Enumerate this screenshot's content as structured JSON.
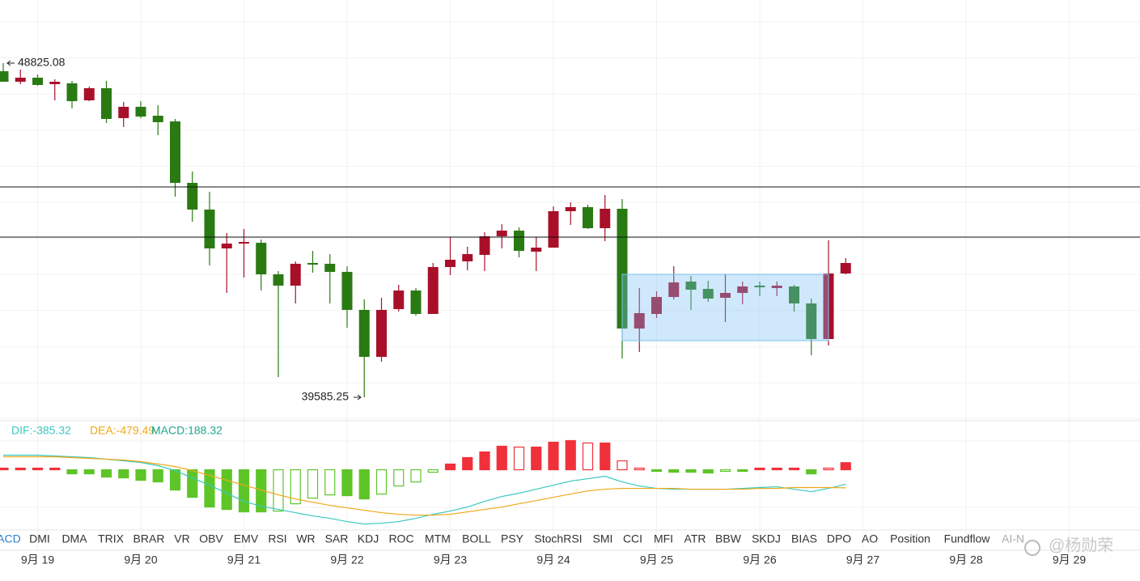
{
  "chart_data": [
    {
      "type": "candlestick",
      "ylim": [
        38981,
        50570
      ],
      "up_color": "#a8102a",
      "down_color": "#2a7a14",
      "open": [
        48601,
        48310,
        48422,
        48243,
        48266,
        47796,
        48131,
        47304,
        47617,
        47371,
        47214,
        45514,
        44776,
        43702,
        43836,
        43858,
        42986,
        42673,
        43299,
        43277,
        43053,
        42002,
        40704,
        42024,
        42538,
        41890,
        43187,
        43344,
        43523,
        44037,
        44194,
        43612,
        43724,
        44731,
        44843,
        44261,
        44798,
        41487,
        41890,
        42359,
        42785,
        42583,
        42337,
        42471,
        42673,
        42606,
        42650,
        42180,
        41196,
        43008
      ],
      "high": [
        48825.08,
        48646,
        48512,
        48378,
        48333,
        48176,
        48333,
        47751,
        47773,
        47662,
        47281,
        45827,
        45268,
        44127,
        44239,
        43948,
        43075,
        43344,
        43635,
        43545,
        43210,
        42292,
        42337,
        42695,
        42606,
        43299,
        44015,
        43747,
        44149,
        44373,
        44283,
        44015,
        44865,
        44977,
        44910,
        45178,
        45066,
        42606,
        42516,
        43210,
        42941,
        42807,
        42986,
        42785,
        42785,
        42785,
        42695,
        42315,
        43926,
        43433
      ],
      "low": [
        48310,
        48243,
        48199,
        47796,
        47572,
        47773,
        47169,
        47058,
        47304,
        46834,
        45134,
        44440,
        43232,
        42471,
        42896,
        42538,
        40145,
        42180,
        43031,
        42180,
        41509,
        39585.25,
        40570,
        41957,
        41845,
        41890,
        42964,
        43098,
        43075,
        43702,
        43456,
        43075,
        43724,
        44351,
        44239,
        43903,
        40659,
        40838,
        41778,
        42292,
        42002,
        42225,
        41666,
        42158,
        42382,
        42382,
        41957,
        40749,
        41017,
        42986
      ],
      "close": [
        48310,
        48422,
        48221,
        48310,
        47773,
        48131,
        47281,
        47617,
        47348,
        47192,
        45514,
        44776,
        43702,
        43836,
        43881,
        42986,
        42673,
        43277,
        43254,
        43053,
        42002,
        40704,
        42002,
        42538,
        41890,
        43187,
        43389,
        43545,
        44037,
        44194,
        43635,
        43724,
        44731,
        44843,
        44261,
        44798,
        41487,
        41912,
        42359,
        42762,
        42561,
        42315,
        42471,
        42650,
        42628,
        42673,
        42180,
        41196,
        43008,
        43299
      ],
      "hlines": [
        45402,
        44015
      ],
      "box": {
        "start": 36,
        "end": 48,
        "low": 41151,
        "high": 42986
      },
      "x_labels": [
        "9月 19",
        "9月 20",
        "9月 21",
        "9月 22",
        "9月 23",
        "9月 24",
        "9月 25",
        "9月 26",
        "9月 27",
        "9月 28",
        "9月 29"
      ]
    },
    {
      "type": "macd",
      "ylim": [
        -1600,
        1300
      ],
      "histogram": {
        "name": "MACD:188.32",
        "color": "#1fa88a",
        "up_color": "#f0313a",
        "down_color": "#5ec528",
        "values": [
          43,
          43,
          43,
          43,
          -108,
          -108,
          -194,
          -215,
          -280,
          -323,
          -538,
          -731,
          -989,
          -1054,
          -1118,
          -1118,
          -1097,
          -903,
          -753,
          -667,
          -688,
          -774,
          -645,
          -430,
          -323,
          -65,
          151,
          323,
          473,
          624,
          602,
          602,
          731,
          774,
          710,
          710,
          237,
          43,
          -43,
          -65,
          -65,
          -86,
          -43,
          -43,
          43,
          43,
          43,
          -108,
          43,
          188.32
        ]
      },
      "series": [
        {
          "name": "DIF:-385.32",
          "color": "#38c8c0",
          "values": [
            387,
            387,
            387,
            366,
            344,
            323,
            280,
            237,
            194,
            108,
            -22,
            -215,
            -409,
            -624,
            -839,
            -968,
            -1054,
            -1140,
            -1226,
            -1290,
            -1376,
            -1441,
            -1419,
            -1376,
            -1290,
            -1183,
            -1097,
            -989,
            -839,
            -710,
            -624,
            -516,
            -409,
            -301,
            -237,
            -172,
            -323,
            -430,
            -495,
            -516,
            -516,
            -516,
            -516,
            -495,
            -473,
            -452,
            -516,
            -581,
            -495,
            -385.32
          ]
        },
        {
          "name": "DEA:-479.49",
          "color": "#f0a818",
          "values": [
            344,
            344,
            344,
            344,
            323,
            301,
            280,
            258,
            215,
            151,
            86,
            -22,
            -151,
            -280,
            -409,
            -538,
            -667,
            -774,
            -860,
            -946,
            -1011,
            -1075,
            -1140,
            -1183,
            -1204,
            -1204,
            -1183,
            -1118,
            -1054,
            -989,
            -903,
            -817,
            -731,
            -645,
            -559,
            -516,
            -495,
            -495,
            -495,
            -495,
            -516,
            -516,
            -516,
            -516,
            -495,
            -495,
            -473,
            -473,
            -473,
            -479.49
          ]
        }
      ]
    }
  ],
  "tabs": [
    "ACD",
    "DMI",
    "DMA",
    "TRIX",
    "BRAR",
    "VR",
    "OBV",
    "EMV",
    "RSI",
    "WR",
    "SAR",
    "KDJ",
    "ROC",
    "MTM",
    "BOLL",
    "PSY",
    "StochRSI",
    "SMI",
    "CCI",
    "MFI",
    "ATR",
    "BBW",
    "SKDJ",
    "BIAS",
    "DPO",
    "AO",
    "Position",
    "Fundflow",
    "AI-N"
  ],
  "watermark": "@杨勋荣"
}
